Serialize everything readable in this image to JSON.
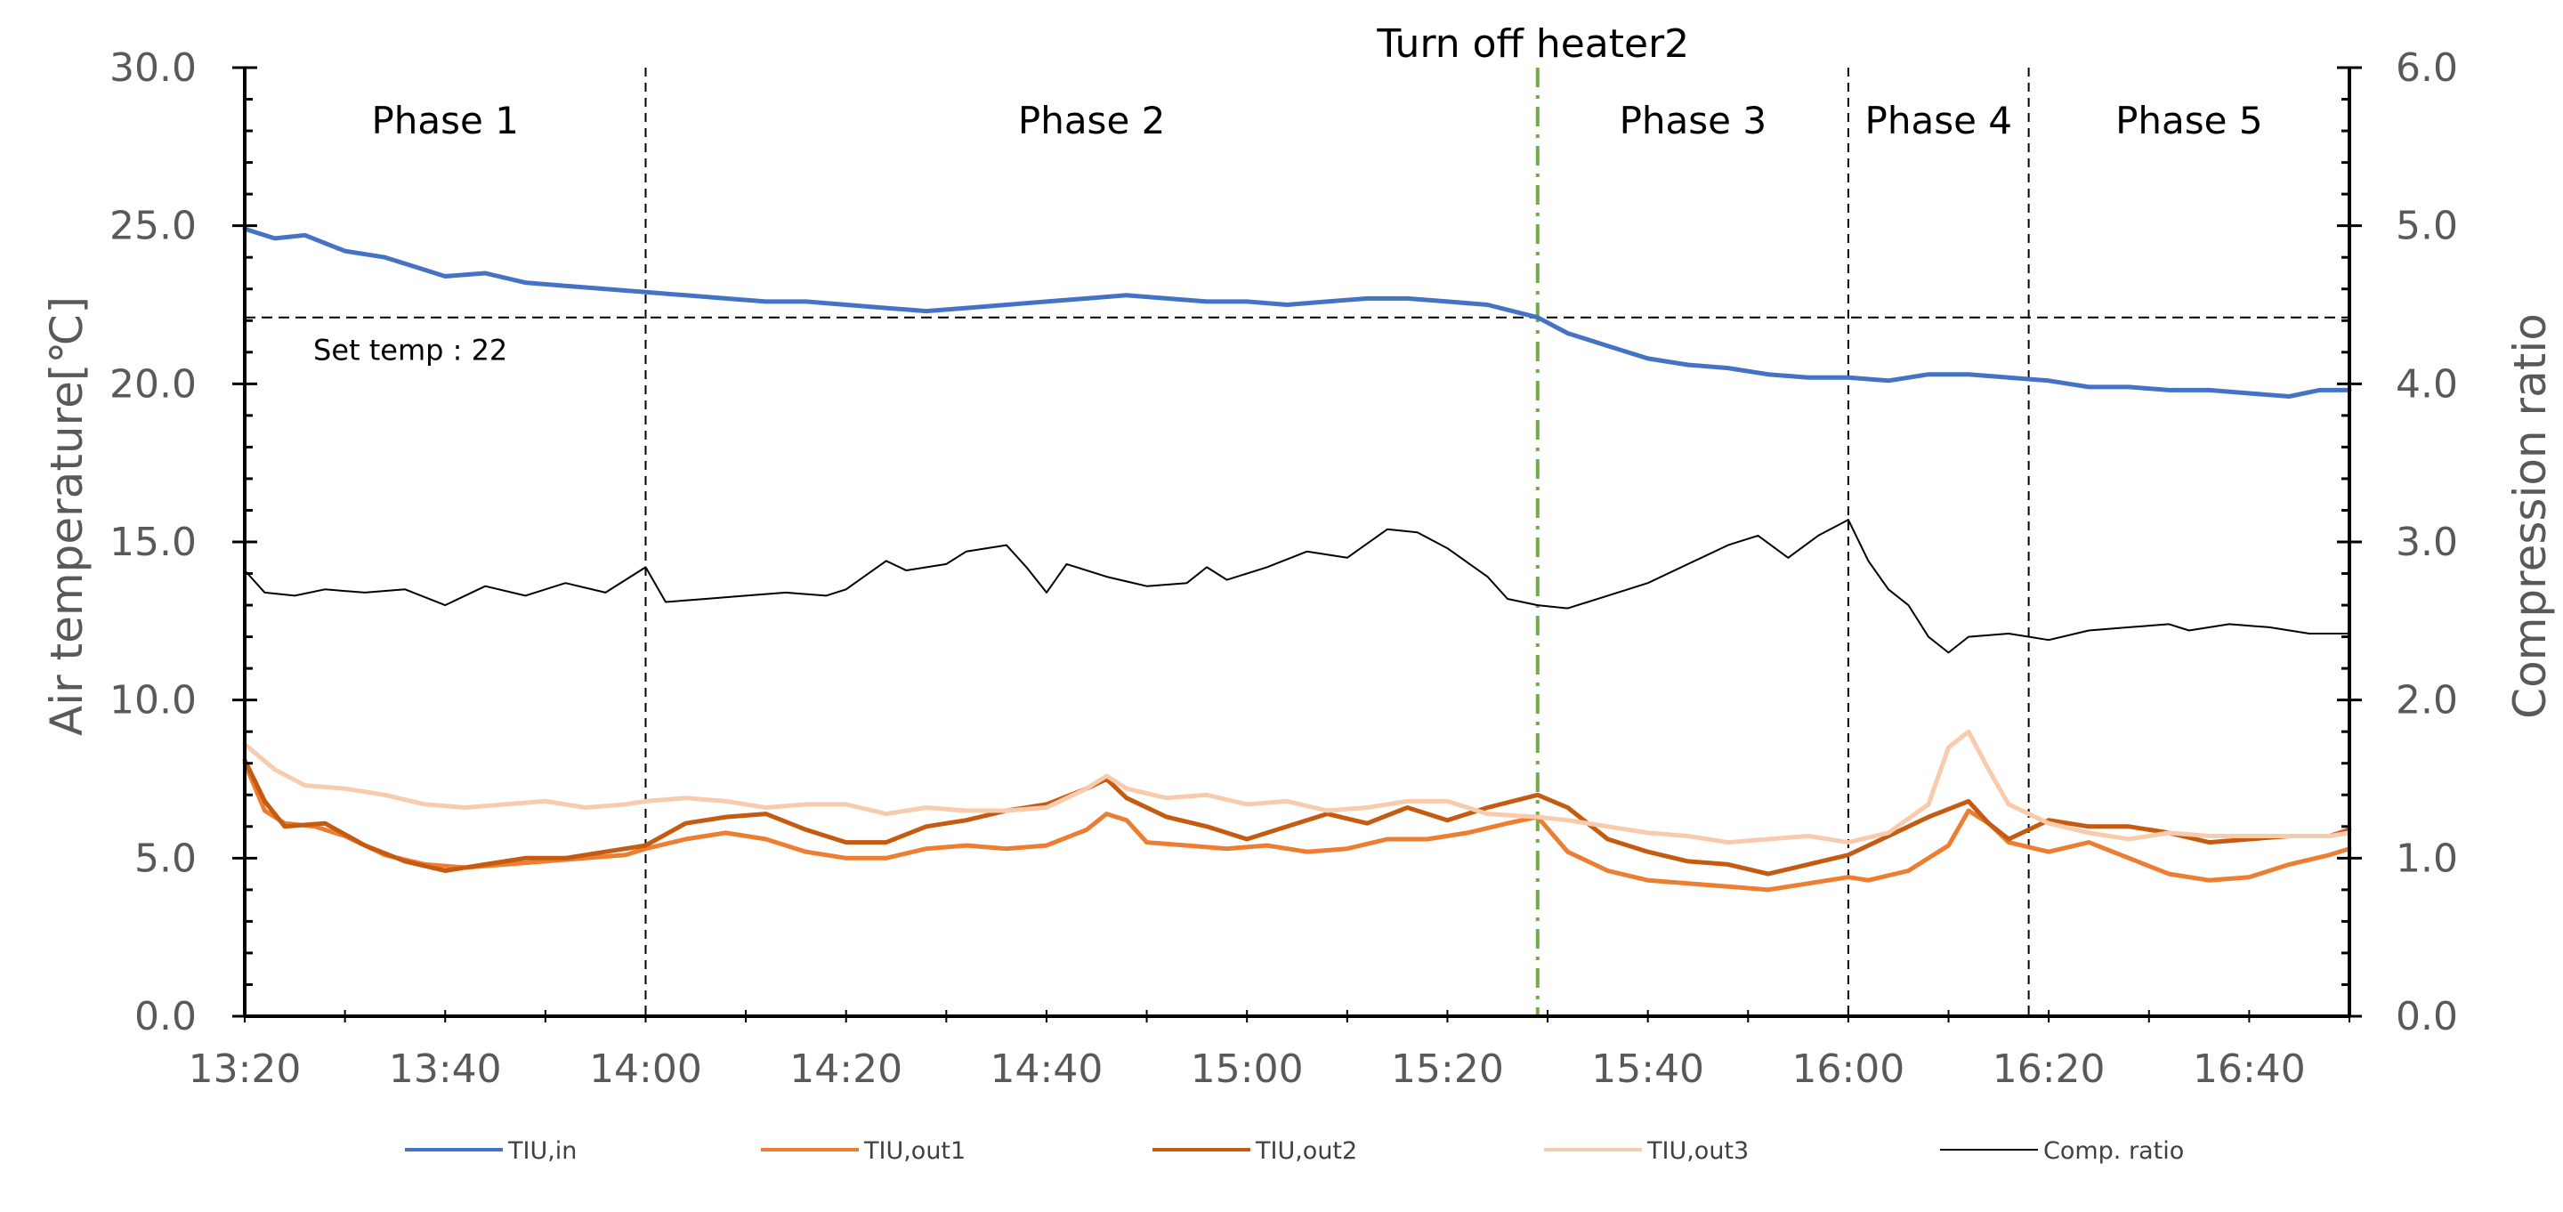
{
  "chart_data": {
    "type": "line",
    "x_tick_labels": [
      "13:20",
      "13:40",
      "14:00",
      "14:20",
      "14:40",
      "15:00",
      "15:20",
      "15:40",
      "16:00",
      "16:20",
      "16:40"
    ],
    "x_range_minutes": [
      0,
      210
    ],
    "ylabel": "Air temperature[℃]",
    "y2label": "Compression ratio",
    "ylim": [
      0,
      30
    ],
    "y2lim": [
      0,
      6
    ],
    "y_tick_labels": [
      "0.0",
      "5.0",
      "10.0",
      "15.0",
      "20.0",
      "25.0",
      "30.0"
    ],
    "y2_tick_labels": [
      "0.0",
      "1.0",
      "2.0",
      "3.0",
      "4.0",
      "5.0",
      "6.0"
    ],
    "phases": [
      {
        "label": "Phase 1",
        "start": 0,
        "end": 40
      },
      {
        "label": "Phase 2",
        "start": 40,
        "end": 129
      },
      {
        "label": "Phase 3",
        "start": 129,
        "end": 160
      },
      {
        "label": "Phase 4",
        "start": 160,
        "end": 178
      },
      {
        "label": "Phase 5",
        "start": 178,
        "end": 210
      }
    ],
    "phase_boundaries": [
      40,
      160,
      178
    ],
    "event_line": {
      "x": 129,
      "label": "Turn off heater2",
      "color": "#70ad47"
    },
    "set_temp_line": {
      "y": 22.1,
      "label": "Set temp : 22"
    },
    "series": [
      {
        "name": "TIU,in",
        "color": "#4472c4",
        "axis": "left",
        "points": [
          [
            0,
            24.9
          ],
          [
            3,
            24.6
          ],
          [
            6,
            24.7
          ],
          [
            10,
            24.2
          ],
          [
            14,
            24.0
          ],
          [
            18,
            23.6
          ],
          [
            20,
            23.4
          ],
          [
            24,
            23.5
          ],
          [
            28,
            23.2
          ],
          [
            32,
            23.1
          ],
          [
            36,
            23.0
          ],
          [
            40,
            22.9
          ],
          [
            44,
            22.8
          ],
          [
            48,
            22.7
          ],
          [
            52,
            22.6
          ],
          [
            56,
            22.6
          ],
          [
            60,
            22.5
          ],
          [
            64,
            22.4
          ],
          [
            68,
            22.3
          ],
          [
            72,
            22.4
          ],
          [
            76,
            22.5
          ],
          [
            80,
            22.6
          ],
          [
            84,
            22.7
          ],
          [
            88,
            22.8
          ],
          [
            92,
            22.7
          ],
          [
            96,
            22.6
          ],
          [
            100,
            22.6
          ],
          [
            104,
            22.5
          ],
          [
            108,
            22.6
          ],
          [
            112,
            22.7
          ],
          [
            116,
            22.7
          ],
          [
            120,
            22.6
          ],
          [
            124,
            22.5
          ],
          [
            129,
            22.1
          ],
          [
            132,
            21.6
          ],
          [
            136,
            21.2
          ],
          [
            140,
            20.8
          ],
          [
            144,
            20.6
          ],
          [
            148,
            20.5
          ],
          [
            152,
            20.3
          ],
          [
            156,
            20.2
          ],
          [
            160,
            20.2
          ],
          [
            164,
            20.1
          ],
          [
            168,
            20.3
          ],
          [
            172,
            20.3
          ],
          [
            176,
            20.2
          ],
          [
            180,
            20.1
          ],
          [
            184,
            19.9
          ],
          [
            188,
            19.9
          ],
          [
            192,
            19.8
          ],
          [
            196,
            19.8
          ],
          [
            200,
            19.7
          ],
          [
            204,
            19.6
          ],
          [
            207,
            19.8
          ],
          [
            210,
            19.8
          ]
        ]
      },
      {
        "name": "TIU,out1",
        "color": "#ed7d31",
        "axis": "left",
        "points": [
          [
            0,
            8.0
          ],
          [
            2,
            6.5
          ],
          [
            4,
            6.1
          ],
          [
            7,
            6.0
          ],
          [
            10,
            5.7
          ],
          [
            14,
            5.1
          ],
          [
            18,
            4.8
          ],
          [
            22,
            4.7
          ],
          [
            26,
            4.8
          ],
          [
            30,
            4.9
          ],
          [
            34,
            5.0
          ],
          [
            38,
            5.1
          ],
          [
            40,
            5.3
          ],
          [
            44,
            5.6
          ],
          [
            48,
            5.8
          ],
          [
            52,
            5.6
          ],
          [
            56,
            5.2
          ],
          [
            60,
            5.0
          ],
          [
            64,
            5.0
          ],
          [
            68,
            5.3
          ],
          [
            72,
            5.4
          ],
          [
            76,
            5.3
          ],
          [
            80,
            5.4
          ],
          [
            84,
            5.9
          ],
          [
            86,
            6.4
          ],
          [
            88,
            6.2
          ],
          [
            90,
            5.5
          ],
          [
            94,
            5.4
          ],
          [
            98,
            5.3
          ],
          [
            102,
            5.4
          ],
          [
            106,
            5.2
          ],
          [
            110,
            5.3
          ],
          [
            114,
            5.6
          ],
          [
            118,
            5.6
          ],
          [
            122,
            5.8
          ],
          [
            126,
            6.1
          ],
          [
            129,
            6.3
          ],
          [
            132,
            5.2
          ],
          [
            136,
            4.6
          ],
          [
            140,
            4.3
          ],
          [
            144,
            4.2
          ],
          [
            148,
            4.1
          ],
          [
            152,
            4.0
          ],
          [
            156,
            4.2
          ],
          [
            160,
            4.4
          ],
          [
            162,
            4.3
          ],
          [
            166,
            4.6
          ],
          [
            170,
            5.4
          ],
          [
            172,
            6.5
          ],
          [
            174,
            6.1
          ],
          [
            176,
            5.5
          ],
          [
            180,
            5.2
          ],
          [
            184,
            5.5
          ],
          [
            188,
            5.0
          ],
          [
            192,
            4.5
          ],
          [
            196,
            4.3
          ],
          [
            200,
            4.4
          ],
          [
            204,
            4.8
          ],
          [
            208,
            5.1
          ],
          [
            210,
            5.3
          ]
        ]
      },
      {
        "name": "TIU,out2",
        "color": "#c55a11",
        "axis": "left",
        "points": [
          [
            0,
            8.1
          ],
          [
            2,
            6.8
          ],
          [
            4,
            6.0
          ],
          [
            8,
            6.1
          ],
          [
            12,
            5.4
          ],
          [
            16,
            4.9
          ],
          [
            20,
            4.6
          ],
          [
            24,
            4.8
          ],
          [
            28,
            5.0
          ],
          [
            32,
            5.0
          ],
          [
            36,
            5.2
          ],
          [
            40,
            5.4
          ],
          [
            44,
            6.1
          ],
          [
            48,
            6.3
          ],
          [
            52,
            6.4
          ],
          [
            56,
            5.9
          ],
          [
            60,
            5.5
          ],
          [
            64,
            5.5
          ],
          [
            68,
            6.0
          ],
          [
            72,
            6.2
          ],
          [
            76,
            6.5
          ],
          [
            80,
            6.7
          ],
          [
            84,
            7.2
          ],
          [
            86,
            7.5
          ],
          [
            88,
            6.9
          ],
          [
            92,
            6.3
          ],
          [
            96,
            6.0
          ],
          [
            100,
            5.6
          ],
          [
            104,
            6.0
          ],
          [
            108,
            6.4
          ],
          [
            112,
            6.1
          ],
          [
            116,
            6.6
          ],
          [
            120,
            6.2
          ],
          [
            124,
            6.6
          ],
          [
            129,
            7.0
          ],
          [
            132,
            6.6
          ],
          [
            136,
            5.6
          ],
          [
            140,
            5.2
          ],
          [
            144,
            4.9
          ],
          [
            148,
            4.8
          ],
          [
            152,
            4.5
          ],
          [
            156,
            4.8
          ],
          [
            160,
            5.1
          ],
          [
            164,
            5.7
          ],
          [
            168,
            6.3
          ],
          [
            172,
            6.8
          ],
          [
            174,
            6.1
          ],
          [
            176,
            5.6
          ],
          [
            180,
            6.2
          ],
          [
            184,
            6.0
          ],
          [
            188,
            6.0
          ],
          [
            192,
            5.8
          ],
          [
            196,
            5.5
          ],
          [
            200,
            5.6
          ],
          [
            204,
            5.7
          ],
          [
            208,
            5.7
          ],
          [
            210,
            5.9
          ]
        ]
      },
      {
        "name": "TIU,out3",
        "color": "#f8cbad",
        "axis": "left",
        "points": [
          [
            0,
            8.6
          ],
          [
            3,
            7.8
          ],
          [
            6,
            7.3
          ],
          [
            10,
            7.2
          ],
          [
            14,
            7.0
          ],
          [
            18,
            6.7
          ],
          [
            22,
            6.6
          ],
          [
            26,
            6.7
          ],
          [
            30,
            6.8
          ],
          [
            34,
            6.6
          ],
          [
            38,
            6.7
          ],
          [
            40,
            6.8
          ],
          [
            44,
            6.9
          ],
          [
            48,
            6.8
          ],
          [
            52,
            6.6
          ],
          [
            56,
            6.7
          ],
          [
            60,
            6.7
          ],
          [
            64,
            6.4
          ],
          [
            68,
            6.6
          ],
          [
            72,
            6.5
          ],
          [
            76,
            6.5
          ],
          [
            80,
            6.6
          ],
          [
            84,
            7.2
          ],
          [
            86,
            7.6
          ],
          [
            88,
            7.2
          ],
          [
            92,
            6.9
          ],
          [
            96,
            7.0
          ],
          [
            100,
            6.7
          ],
          [
            104,
            6.8
          ],
          [
            108,
            6.5
          ],
          [
            112,
            6.6
          ],
          [
            116,
            6.8
          ],
          [
            120,
            6.8
          ],
          [
            124,
            6.4
          ],
          [
            129,
            6.3
          ],
          [
            132,
            6.2
          ],
          [
            136,
            6.0
          ],
          [
            140,
            5.8
          ],
          [
            144,
            5.7
          ],
          [
            148,
            5.5
          ],
          [
            152,
            5.6
          ],
          [
            156,
            5.7
          ],
          [
            160,
            5.5
          ],
          [
            164,
            5.8
          ],
          [
            168,
            6.7
          ],
          [
            170,
            8.5
          ],
          [
            172,
            9.0
          ],
          [
            174,
            7.8
          ],
          [
            176,
            6.7
          ],
          [
            180,
            6.1
          ],
          [
            184,
            5.8
          ],
          [
            188,
            5.6
          ],
          [
            192,
            5.8
          ],
          [
            196,
            5.7
          ],
          [
            200,
            5.7
          ],
          [
            204,
            5.7
          ],
          [
            208,
            5.7
          ],
          [
            210,
            5.8
          ]
        ]
      },
      {
        "name": "Comp. ratio",
        "color": "#000000",
        "axis": "right",
        "points": [
          [
            0,
            2.82
          ],
          [
            2,
            2.68
          ],
          [
            5,
            2.66
          ],
          [
            8,
            2.7
          ],
          [
            12,
            2.68
          ],
          [
            16,
            2.7
          ],
          [
            20,
            2.6
          ],
          [
            24,
            2.72
          ],
          [
            28,
            2.66
          ],
          [
            32,
            2.74
          ],
          [
            36,
            2.68
          ],
          [
            40,
            2.84
          ],
          [
            42,
            2.62
          ],
          [
            46,
            2.64
          ],
          [
            50,
            2.66
          ],
          [
            54,
            2.68
          ],
          [
            58,
            2.66
          ],
          [
            60,
            2.7
          ],
          [
            64,
            2.88
          ],
          [
            66,
            2.82
          ],
          [
            70,
            2.86
          ],
          [
            72,
            2.94
          ],
          [
            76,
            2.98
          ],
          [
            78,
            2.84
          ],
          [
            80,
            2.68
          ],
          [
            82,
            2.86
          ],
          [
            86,
            2.78
          ],
          [
            90,
            2.72
          ],
          [
            94,
            2.74
          ],
          [
            96,
            2.84
          ],
          [
            98,
            2.76
          ],
          [
            102,
            2.84
          ],
          [
            106,
            2.94
          ],
          [
            110,
            2.9
          ],
          [
            114,
            3.08
          ],
          [
            117,
            3.06
          ],
          [
            120,
            2.96
          ],
          [
            124,
            2.78
          ],
          [
            126,
            2.64
          ],
          [
            129,
            2.6
          ],
          [
            132,
            2.58
          ],
          [
            136,
            2.66
          ],
          [
            140,
            2.74
          ],
          [
            144,
            2.86
          ],
          [
            148,
            2.98
          ],
          [
            151,
            3.04
          ],
          [
            154,
            2.9
          ],
          [
            157,
            3.04
          ],
          [
            160,
            3.14
          ],
          [
            162,
            2.88
          ],
          [
            164,
            2.7
          ],
          [
            166,
            2.6
          ],
          [
            168,
            2.4
          ],
          [
            170,
            2.3
          ],
          [
            172,
            2.4
          ],
          [
            176,
            2.42
          ],
          [
            180,
            2.38
          ],
          [
            184,
            2.44
          ],
          [
            188,
            2.46
          ],
          [
            192,
            2.48
          ],
          [
            194,
            2.44
          ],
          [
            198,
            2.48
          ],
          [
            202,
            2.46
          ],
          [
            206,
            2.42
          ],
          [
            210,
            2.42
          ]
        ]
      }
    ]
  }
}
